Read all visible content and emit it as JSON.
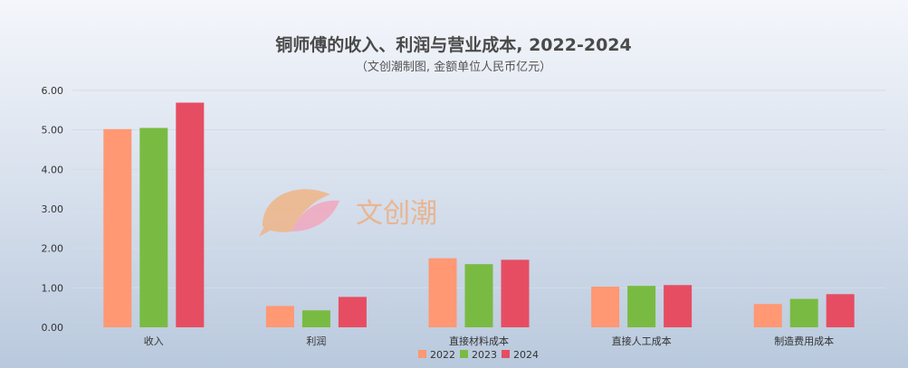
{
  "chart_data": {
    "type": "bar",
    "title": "铜师傅的收入、利润与营业成本, 2022-2024",
    "subtitle": "（文创潮制图, 金额单位人民币亿元）",
    "categories": [
      "收入",
      "利润",
      "直接材料成本",
      "直接人工成本",
      "制造费用成本"
    ],
    "series": [
      {
        "name": "2022",
        "color": "#ff9873",
        "values": [
          5.02,
          0.54,
          1.75,
          1.03,
          0.59
        ]
      },
      {
        "name": "2023",
        "color": "#79bb42",
        "values": [
          5.05,
          0.43,
          1.6,
          1.05,
          0.72
        ]
      },
      {
        "name": "2024",
        "color": "#e64d62",
        "values": [
          5.69,
          0.77,
          1.71,
          1.07,
          0.84
        ]
      }
    ],
    "ylim": [
      0,
      6
    ],
    "yticks": [
      "0.00",
      "1.00",
      "2.00",
      "3.00",
      "4.00",
      "5.00",
      "6.00"
    ],
    "grid": true,
    "legend_position": "bottom"
  },
  "watermark": {
    "text": "文创潮",
    "icon": "fish-logo-icon"
  }
}
